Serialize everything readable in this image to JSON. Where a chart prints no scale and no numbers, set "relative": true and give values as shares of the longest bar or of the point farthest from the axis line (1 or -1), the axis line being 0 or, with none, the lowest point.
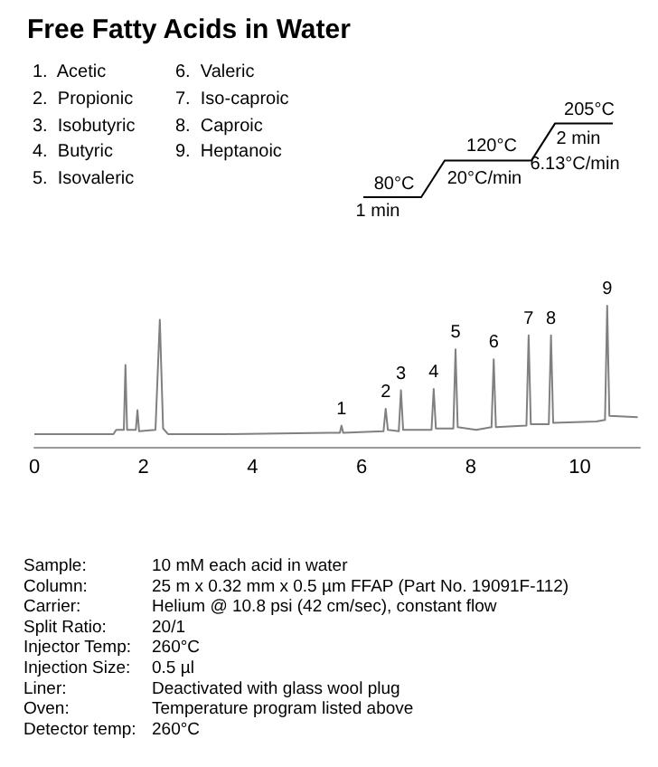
{
  "chart_data": {
    "type": "line",
    "title": "Free Fatty Acids in Water",
    "relative": true,
    "x": [
      0,
      1.45,
      1.5,
      1.64,
      1.67,
      1.7,
      1.86,
      1.89,
      1.92,
      2.22,
      2.3,
      2.36,
      2.45,
      3.5,
      5.4,
      5.6,
      5.63,
      5.66,
      6.4,
      6.44,
      6.48,
      6.68,
      6.72,
      6.76,
      7.28,
      7.32,
      7.36,
      7.68,
      7.72,
      7.76,
      8.1,
      8.38,
      8.42,
      8.46,
      9.02,
      9.06,
      9.1,
      9.43,
      9.47,
      9.51,
      10.3,
      10.46,
      10.5,
      10.54,
      11.06
    ],
    "values": [
      0.09,
      0.09,
      0.12,
      0.12,
      0.58,
      0.12,
      0.12,
      0.26,
      0.11,
      0.12,
      0.9,
      0.13,
      0.09,
      0.09,
      0.1,
      0.1,
      0.15,
      0.1,
      0.11,
      0.27,
      0.12,
      0.11,
      0.4,
      0.12,
      0.12,
      0.41,
      0.13,
      0.13,
      0.69,
      0.14,
      0.12,
      0.14,
      0.62,
      0.14,
      0.15,
      0.79,
      0.16,
      0.16,
      0.79,
      0.17,
      0.18,
      0.19,
      1.0,
      0.22,
      0.21
    ],
    "color": "#808080",
    "marker": "none",
    "line_style": "solid",
    "grid": false,
    "xlim": [
      0,
      11.1
    ],
    "xticks": [
      0,
      2,
      4,
      6,
      8,
      10
    ],
    "annotations": [
      "1.  Acetic",
      "2.  Propionic",
      "3.  Isobutyric",
      "4.  Butyric",
      "5.  Isovaleric",
      "6.  Valeric",
      "7.  Iso-caproic",
      "8.  Caproic",
      "9.  Heptanoic",
      "80°C",
      "1 min",
      "120°C",
      "20°C/min",
      "205°C",
      "2 min",
      "6.13°C/min",
      "Sample:",
      "10 mM each acid in water",
      "Column:",
      "25 m x 0.32 mm x 0.5 µm FFAP (Part No. 19091F-112)",
      "Carrier:",
      "Helium @ 10.8 psi (42 cm/sec), constant flow",
      "Split Ratio:",
      "20/1",
      "Injector Temp:",
      "260°C",
      "Injection Size:",
      "0.5 µl",
      "Liner:",
      "Deactivated with glass wool plug",
      "Oven:",
      "Temperature program listed above",
      "Detector temp:",
      "260°C",
      {
        "text": "1",
        "x": 5.63,
        "y": 0.15
      },
      {
        "text": "2",
        "x": 6.44,
        "y": 0.27
      },
      {
        "text": "3",
        "x": 6.72,
        "y": 0.4
      },
      {
        "text": "4",
        "x": 7.32,
        "y": 0.41
      },
      {
        "text": "5",
        "x": 7.72,
        "y": 0.69
      },
      {
        "text": "6",
        "x": 8.42,
        "y": 0.62
      },
      {
        "text": "7",
        "x": 9.06,
        "y": 0.79
      },
      {
        "text": "8",
        "x": 9.47,
        "y": 0.79
      },
      {
        "text": "9",
        "x": 10.5,
        "y": 1.0
      }
    ]
  }
}
